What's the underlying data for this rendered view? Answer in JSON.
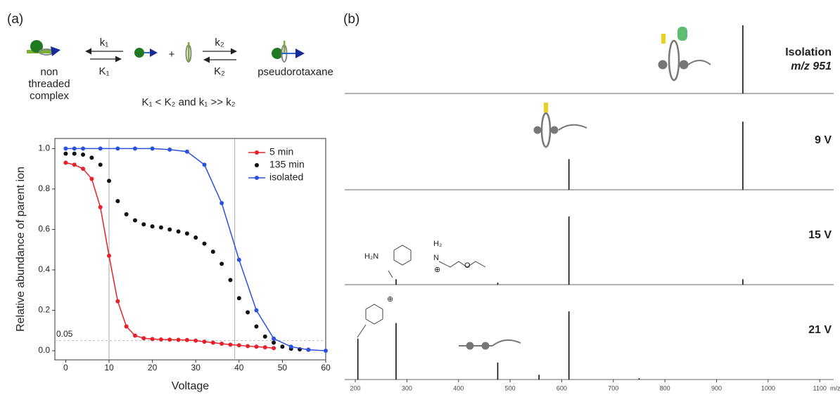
{
  "panel_a": {
    "label": "(a)",
    "scheme": {
      "left_label": [
        "non",
        "threaded",
        "complex"
      ],
      "k1": "k₁",
      "K1": "K₁",
      "plus": "+",
      "k2": "k₂",
      "K2": "K₂",
      "right_label": "pseudorotaxane",
      "condition": "K₁ < K₂ and k₁ >> k₂"
    }
  },
  "panel_b": {
    "label": "(b)",
    "structures": {
      "amine": "H₂N",
      "h2": "H₂",
      "n": "N",
      "o": "O",
      "plus1": "⊕",
      "plus2": "⊕"
    }
  },
  "chart_data": [
    {
      "type": "scatter",
      "xlabel": "Voltage",
      "ylabel": "Relative abundance of parent ion",
      "xlim": [
        -2.5,
        60
      ],
      "ylim": [
        -0.045,
        1.05
      ],
      "xticks": [
        0,
        10,
        20,
        30,
        40,
        50,
        60
      ],
      "yticks": [
        {
          "value": 0,
          "label": "0.0"
        },
        0.2,
        0.4,
        0.6,
        0.8,
        {
          "value": 1,
          "label": "1.0"
        }
      ],
      "vlines": [
        10,
        39
      ],
      "hline": {
        "value": 0.05,
        "label": "0.05"
      },
      "legend": "upper right",
      "series": [
        {
          "name": "5 min",
          "color": "#e8202a",
          "line": true,
          "x": [
            0,
            2,
            4,
            6,
            8,
            10,
            12,
            14,
            16,
            18,
            20,
            22,
            24,
            26,
            28,
            30,
            32,
            34,
            36,
            38,
            40,
            42,
            44,
            46,
            48
          ],
          "values": [
            0.93,
            0.92,
            0.9,
            0.85,
            0.71,
            0.47,
            0.245,
            0.12,
            0.075,
            0.062,
            0.058,
            0.056,
            0.055,
            0.054,
            0.053,
            0.05,
            0.045,
            0.04,
            0.035,
            0.03,
            0.027,
            0.023,
            0.02,
            0.017,
            0.013
          ]
        },
        {
          "name": "135 min",
          "color": "#111111",
          "line": false,
          "x": [
            0,
            2,
            4,
            6,
            8,
            10,
            12,
            14,
            16,
            18,
            20,
            22,
            24,
            26,
            28,
            30,
            32,
            34,
            36,
            38,
            40,
            42,
            44,
            46,
            48,
            50,
            52,
            54,
            56
          ],
          "values": [
            0.975,
            0.975,
            0.97,
            0.955,
            0.92,
            0.84,
            0.74,
            0.675,
            0.645,
            0.625,
            0.615,
            0.61,
            0.6,
            0.59,
            0.58,
            0.56,
            0.53,
            0.49,
            0.43,
            0.35,
            0.26,
            0.19,
            0.12,
            0.07,
            0.04,
            0.02,
            0.01,
            0.007,
            0.005
          ]
        },
        {
          "name": "isolated",
          "color": "#2a52e0",
          "line": true,
          "x": [
            0,
            2,
            4,
            8,
            12,
            16,
            20,
            24,
            28,
            32,
            36,
            40,
            44,
            48,
            52,
            56,
            60
          ],
          "values": [
            1.0,
            1.0,
            1.0,
            1.0,
            1.0,
            1.0,
            1.0,
            0.995,
            0.985,
            0.92,
            0.73,
            0.45,
            0.2,
            0.06,
            0.02,
            0.005,
            0.0
          ]
        }
      ]
    },
    {
      "type": "stem",
      "title": "Isolation",
      "subtitle": "m/z 951",
      "xlim": [
        179.5,
        1127
      ],
      "ylim": [
        0,
        100
      ],
      "color": "#111111",
      "x": [
        951
      ],
      "values": [
        100
      ]
    },
    {
      "type": "stem",
      "title": "9 V",
      "xlim": [
        179.5,
        1127
      ],
      "ylim": [
        0,
        100
      ],
      "color": "#111111",
      "x": [
        614,
        951
      ],
      "values": [
        45,
        100
      ]
    },
    {
      "type": "stem",
      "title": "15 V",
      "xlim": [
        179.5,
        1127
      ],
      "ylim": [
        0,
        100
      ],
      "color": "#111111",
      "x": [
        279,
        476,
        614,
        951
      ],
      "values": [
        8,
        3,
        100,
        8
      ]
    },
    {
      "type": "stem",
      "title": "21 V",
      "xlabel": "m/z",
      "xlim": [
        179.5,
        1127
      ],
      "ylim": [
        0,
        100
      ],
      "color": "#111111",
      "x": [
        205,
        279,
        476,
        556,
        614,
        750
      ],
      "values": [
        60,
        83,
        25,
        7,
        100,
        2
      ],
      "xticks": [
        200,
        300,
        400,
        500,
        600,
        700,
        800,
        900,
        1000,
        1100
      ]
    }
  ]
}
